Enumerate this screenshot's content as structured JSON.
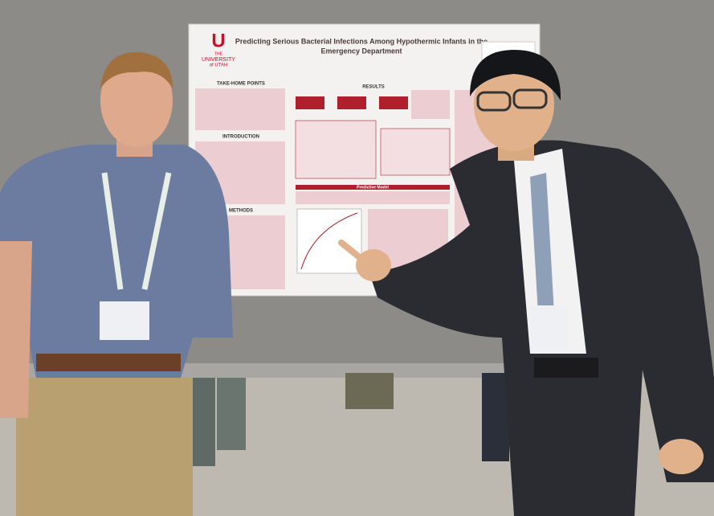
{
  "poster": {
    "title_lines": [
      "Predicting Serious Bacterial Infections Among Hypothermic Infants in the",
      "Emergency Department"
    ],
    "logo": {
      "letter": "U",
      "lines": [
        "THE",
        "UNIVERSITY",
        "of UTAH"
      ]
    },
    "sections": [
      "TAKE-HOME POINTS",
      "INTRODUCTION",
      "METHODS",
      "RESULTS",
      "Predictive Model"
    ]
  }
}
